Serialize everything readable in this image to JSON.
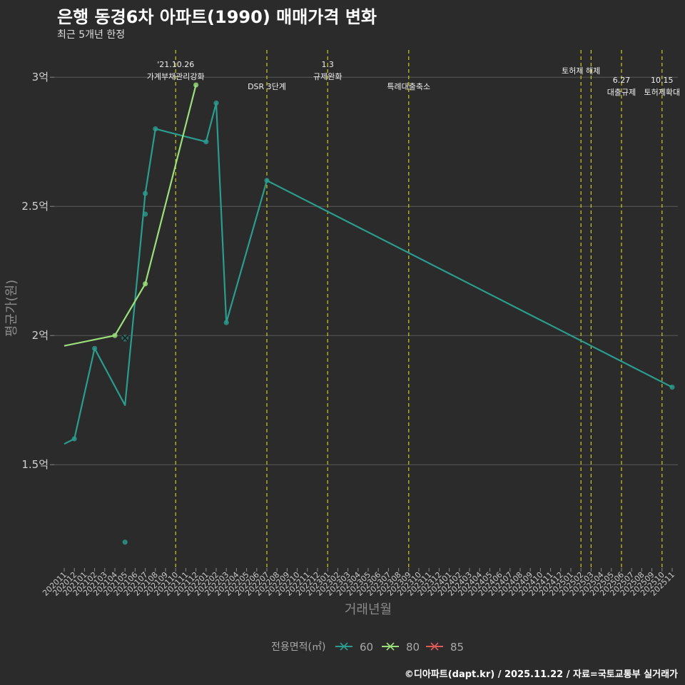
{
  "header": {
    "title": "은행 동경6차 아파트(1990) 매매가격 변화",
    "subtitle": "최근 5개년 한정",
    "caption": "©디아파트(dapt.kr) / 2025.11.22 / 자료=국토교통부 실거래가"
  },
  "chart_data": {
    "type": "line",
    "xlabel": "거래년월",
    "ylabel": "평균가(원)",
    "ylim": [
      1.1,
      3.1
    ],
    "yticks": [
      {
        "value": 1.5,
        "label": "1.5억"
      },
      {
        "value": 2.0,
        "label": "2억"
      },
      {
        "value": 2.5,
        "label": "2.5억"
      },
      {
        "value": 3.0,
        "label": "3억"
      }
    ],
    "categories": [
      "202011",
      "202012",
      "202101",
      "202102",
      "202103",
      "202104",
      "202105",
      "202106",
      "202107",
      "202108",
      "202109",
      "202110",
      "202111",
      "202112",
      "202201",
      "202202",
      "202203",
      "202204",
      "202205",
      "202206",
      "202207",
      "202208",
      "202209",
      "202210",
      "202211",
      "202212",
      "202301",
      "202302",
      "202303",
      "202304",
      "202305",
      "202306",
      "202307",
      "202308",
      "202309",
      "202310",
      "202311",
      "202312",
      "202401",
      "202402",
      "202403",
      "202404",
      "202405",
      "202406",
      "202407",
      "202408",
      "202409",
      "202410",
      "202411",
      "202412",
      "202501",
      "202502",
      "202503",
      "202504",
      "202505",
      "202506",
      "202507",
      "202508",
      "202509",
      "202510",
      "202511"
    ],
    "series": [
      {
        "name": "60",
        "color": "#2a9d8f",
        "line": [
          [
            "202011",
            1.58
          ],
          [
            "202012",
            1.6
          ],
          [
            "202102",
            1.95
          ],
          [
            "202105",
            1.73
          ],
          [
            "202107",
            2.55
          ],
          [
            "202108",
            2.8
          ],
          [
            "202201",
            2.75
          ],
          [
            "202202",
            2.9
          ],
          [
            "202203",
            2.05
          ],
          [
            "202207",
            2.6
          ],
          [
            "202511",
            1.8
          ]
        ],
        "points": [
          [
            "202012",
            1.6
          ],
          [
            "202102",
            1.95
          ],
          [
            "202105",
            1.2
          ],
          [
            "202107",
            2.55
          ],
          [
            "202107",
            2.47
          ],
          [
            "202108",
            2.8
          ],
          [
            "202201",
            2.75
          ],
          [
            "202202",
            2.9
          ],
          [
            "202203",
            2.05
          ],
          [
            "202207",
            2.6
          ],
          [
            "202511",
            1.8
          ]
        ]
      },
      {
        "name": "80",
        "color": "#9be07a",
        "line": [
          [
            "202011",
            1.96
          ],
          [
            "202104",
            2.0
          ],
          [
            "202107",
            2.2
          ],
          [
            "202112",
            2.97
          ]
        ],
        "points": [
          [
            "202104",
            2.0
          ],
          [
            "202107",
            2.2
          ],
          [
            "202112",
            2.97
          ]
        ]
      },
      {
        "name": "85",
        "color": "#e05a5a",
        "line": [],
        "points": []
      }
    ],
    "marker_x": [
      [
        "202105",
        1.99
      ]
    ],
    "events": [
      {
        "at": "202110",
        "line1": "'21.10.26",
        "line2": "가계부채관리강화",
        "row": "high"
      },
      {
        "at": "202207",
        "line1": "",
        "line2": "DSR 3단계",
        "row": "low"
      },
      {
        "at": "202301",
        "line1": "1.3",
        "line2": "규제완화",
        "row": "high"
      },
      {
        "at": "202309",
        "line1": "",
        "line2": "특례대출축소",
        "row": "low"
      },
      {
        "at": "202502",
        "line1": "",
        "line2": "토허제 해제",
        "row": "mid"
      },
      {
        "at": "202503",
        "line1": "",
        "line2": "",
        "row": "none"
      },
      {
        "at": "202506",
        "line1": "6.27",
        "line2": "대출규제",
        "row": "lower"
      },
      {
        "at": "202510",
        "line1": "10.15",
        "line2": "토허제확대",
        "row": "lower"
      }
    ],
    "legend": {
      "title": "전용면적(㎡)",
      "items": [
        "60",
        "80",
        "85"
      ]
    }
  }
}
